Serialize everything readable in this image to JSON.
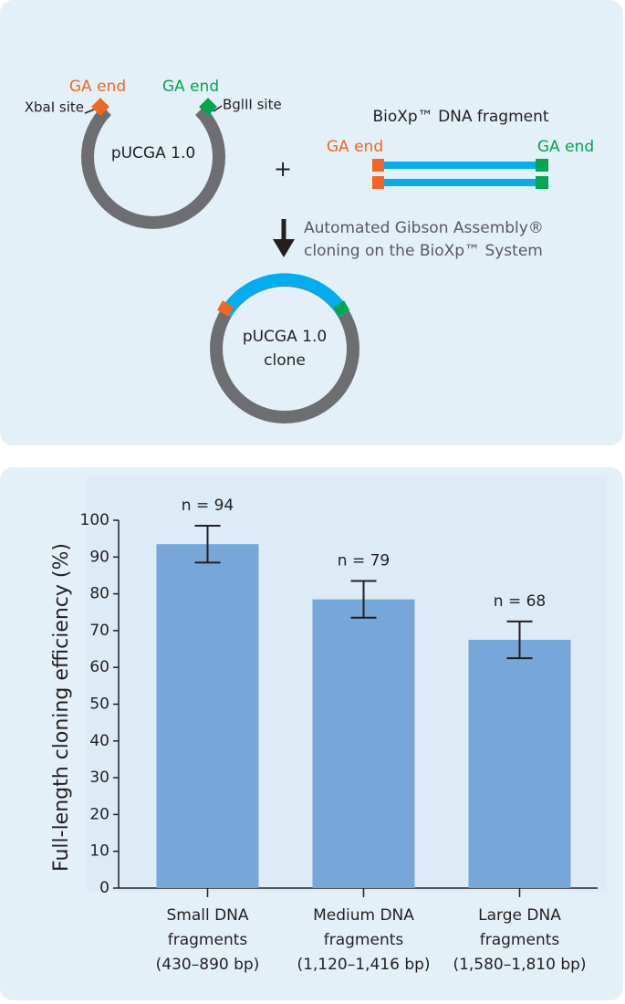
{
  "diagram": {
    "vector_left_end": "GA end",
    "vector_right_end": "GA end",
    "xbai_site": "XbaI site",
    "bglii_site": "BglII site",
    "vector_name": "pUCGA 1.0",
    "plus": "+",
    "fragment_title": "BioXp™ DNA fragment",
    "fragment_left_end": "GA end",
    "fragment_right_end": "GA end",
    "step_line1": "Automated Gibson Assembly®",
    "step_line2": "cloning on the BioXp™ System",
    "clone_line1": "pUCGA 1.0",
    "clone_line2": "clone"
  },
  "chart_data": {
    "type": "bar",
    "y_label": "Full-length cloning efficiency (%)",
    "categories": [
      [
        "Small DNA",
        "fragments",
        "(430–890 bp)"
      ],
      [
        "Medium DNA",
        "fragments",
        "(1,120–1,416 bp)"
      ],
      [
        "Large DNA",
        "fragments",
        "(1,580–1,810 bp)"
      ]
    ],
    "values": [
      93.5,
      78.5,
      67.5
    ],
    "errors": [
      5,
      5,
      5
    ],
    "annotations": [
      "n = 94",
      "n = 79",
      "n = 68"
    ],
    "color": "#77a7d8",
    "ylim": [
      0,
      100
    ],
    "yticks": [
      0,
      10,
      20,
      30,
      40,
      50,
      60,
      70,
      80,
      90,
      100
    ],
    "grid": false
  }
}
